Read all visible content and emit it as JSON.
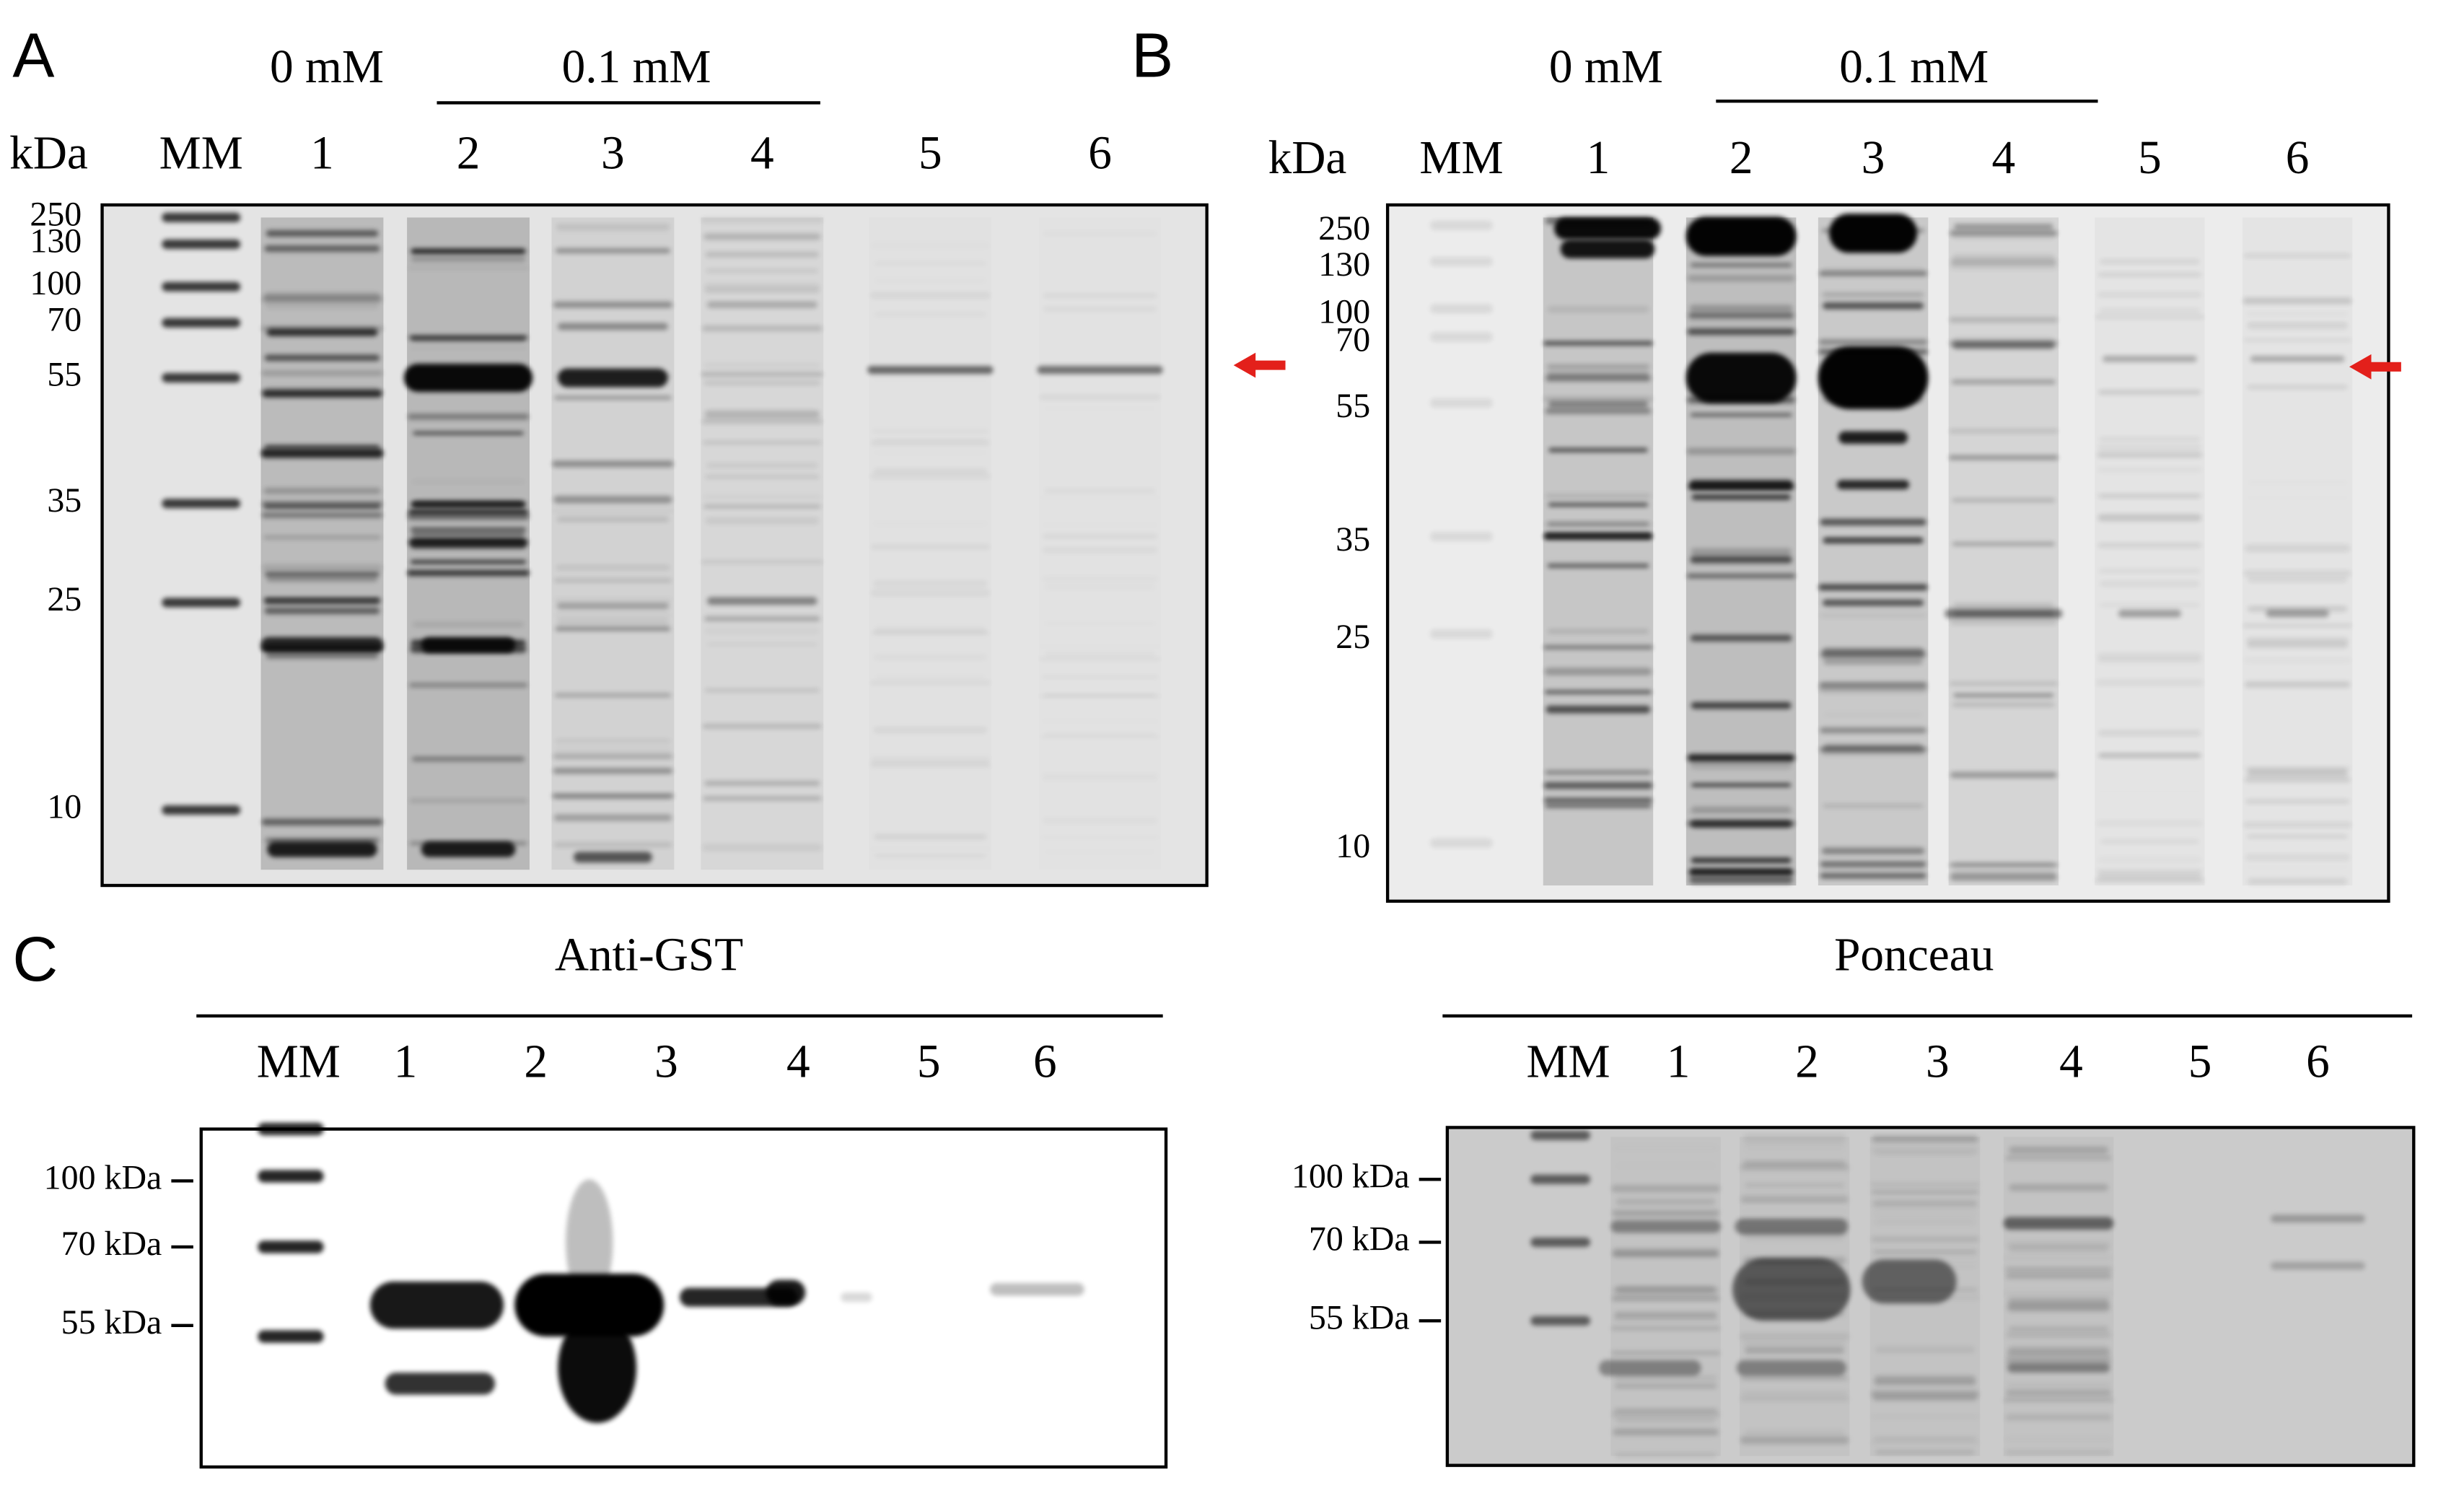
{
  "panel_a": {
    "label": "A",
    "concentrations": [
      "0 mM",
      "0.1 mM"
    ],
    "unit": "kDa",
    "lanes": [
      "MM",
      "1",
      "2",
      "3",
      "4",
      "5",
      "6"
    ],
    "markers": [
      "250",
      "130",
      "100",
      "70",
      "55",
      "35",
      "25",
      "10"
    ]
  },
  "panel_b": {
    "label": "B",
    "concentrations": [
      "0 mM",
      "0.1 mM"
    ],
    "unit": "kDa",
    "lanes": [
      "MM",
      "1",
      "2",
      "3",
      "4",
      "5",
      "6"
    ],
    "markers": [
      "250",
      "130",
      "100",
      "70",
      "55",
      "35",
      "25",
      "10"
    ]
  },
  "panel_c": {
    "label": "C",
    "blots": [
      {
        "title": "Anti-GST",
        "lanes": [
          "MM",
          "1",
          "2",
          "3",
          "4",
          "5",
          "6"
        ],
        "markers": [
          "100 kDa",
          "70 kDa",
          "55 kDa"
        ]
      },
      {
        "title": "Ponceau",
        "lanes": [
          "MM",
          "1",
          "2",
          "3",
          "4",
          "5",
          "6"
        ],
        "markers": [
          "100 kDa",
          "70 kDa",
          "55 kDa"
        ]
      }
    ]
  }
}
